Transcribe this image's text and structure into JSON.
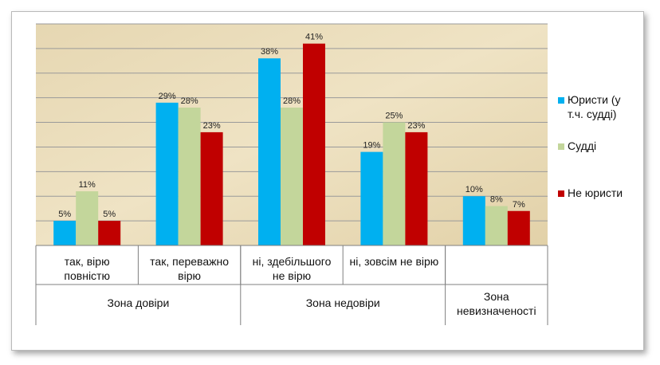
{
  "chart_data": {
    "type": "bar",
    "categories": [
      [
        "так, вірю",
        "повністю"
      ],
      [
        "так, переважно",
        "вірю"
      ],
      [
        "ні, здебільшого",
        "не вірю"
      ],
      [
        "ні, зовсім не вірю"
      ],
      [
        ""
      ]
    ],
    "groups": [
      {
        "label": [
          "Зона довіри"
        ],
        "span": [
          0,
          1
        ]
      },
      {
        "label": [
          "Зона недовіри"
        ],
        "span": [
          2,
          3
        ]
      },
      {
        "label": [
          "Зона",
          "невизначеності"
        ],
        "span": [
          4,
          4
        ]
      }
    ],
    "series": [
      {
        "name": [
          "Юристи (у",
          "т.ч. судді)"
        ],
        "color": "#00b0f0",
        "values": [
          5,
          29,
          38,
          19,
          10
        ]
      },
      {
        "name": [
          "Судді"
        ],
        "color": "#c3d69b",
        "values": [
          11,
          28,
          28,
          25,
          8
        ]
      },
      {
        "name": [
          "Не юристи"
        ],
        "color": "#c00000",
        "values": [
          5,
          23,
          41,
          23,
          7
        ]
      }
    ],
    "value_suffix": "%",
    "ylim": [
      0,
      45
    ],
    "grid": true,
    "legend": "right"
  }
}
